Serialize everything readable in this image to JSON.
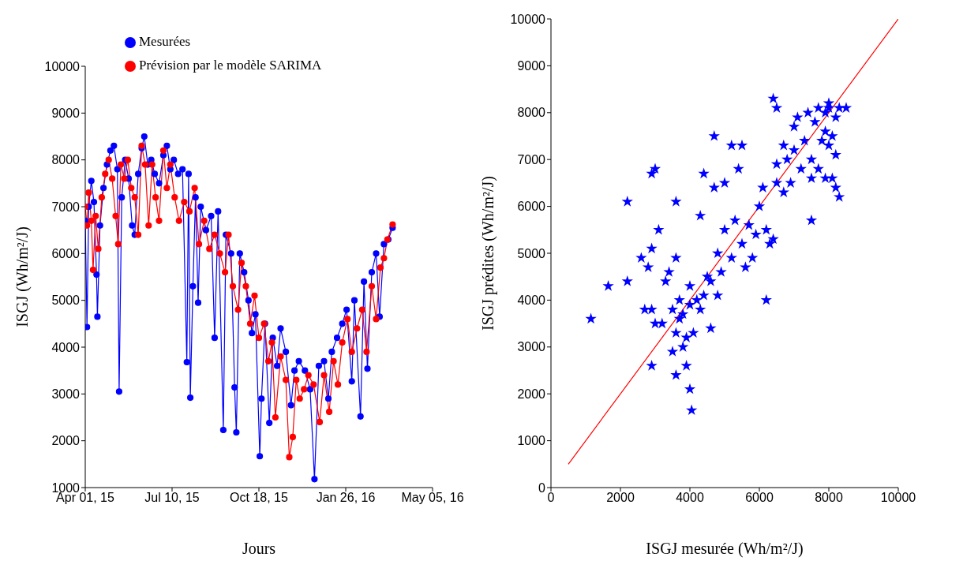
{
  "chart_data": [
    {
      "type": "line",
      "xlabel": "Jours",
      "ylabel": "ISGJ (Wh/m²/J)",
      "xlim": [
        "2015-04-01",
        "2016-05-05"
      ],
      "xticks": [
        {
          "value": "2015-04-01",
          "label": "Apr 01, 15"
        },
        {
          "value": "2015-07-10",
          "label": "Jul 10, 15"
        },
        {
          "value": "2015-10-18",
          "label": "Oct 18, 15"
        },
        {
          "value": "2016-01-26",
          "label": "Jan 26, 16"
        },
        {
          "value": "2016-05-05",
          "label": "May 05, 16"
        }
      ],
      "ylim": [
        1000,
        10000
      ],
      "yticks": [
        1000,
        2000,
        3000,
        4000,
        5000,
        6000,
        7000,
        8000,
        9000,
        10000
      ],
      "legend": "top",
      "marker": "circle",
      "line_style": "solid",
      "series": [
        {
          "name": "Mesurées",
          "color": "#0000ff",
          "x": [
            "2015-04-01",
            "2015-04-03",
            "2015-04-05",
            "2015-04-08",
            "2015-04-11",
            "2015-04-14",
            "2015-04-15",
            "2015-04-18",
            "2015-04-22",
            "2015-04-26",
            "2015-04-30",
            "2015-05-04",
            "2015-05-08",
            "2015-05-10",
            "2015-05-13",
            "2015-05-17",
            "2015-05-21",
            "2015-05-25",
            "2015-05-28",
            "2015-06-01",
            "2015-06-05",
            "2015-06-08",
            "2015-06-12",
            "2015-06-16",
            "2015-06-20",
            "2015-06-25",
            "2015-06-30",
            "2015-07-04",
            "2015-07-08",
            "2015-07-12",
            "2015-07-17",
            "2015-07-22",
            "2015-07-27",
            "2015-07-29",
            "2015-07-31",
            "2015-08-03",
            "2015-08-06",
            "2015-08-09",
            "2015-08-12",
            "2015-08-18",
            "2015-08-24",
            "2015-08-28",
            "2015-09-01",
            "2015-09-07",
            "2015-09-10",
            "2015-09-16",
            "2015-09-20",
            "2015-09-22",
            "2015-09-26",
            "2015-10-01",
            "2015-10-06",
            "2015-10-10",
            "2015-10-14",
            "2015-10-19",
            "2015-10-21",
            "2015-10-25",
            "2015-10-30",
            "2015-11-03",
            "2015-11-08",
            "2015-11-12",
            "2015-11-18",
            "2015-11-24",
            "2015-11-28",
            "2015-12-03",
            "2015-12-10",
            "2015-12-16",
            "2015-12-21",
            "2015-12-26",
            "2016-01-01",
            "2016-01-06",
            "2016-01-10",
            "2016-01-16",
            "2016-01-22",
            "2016-01-27",
            "2016-02-02",
            "2016-02-05",
            "2016-02-12",
            "2016-02-16",
            "2016-02-20",
            "2016-02-25",
            "2016-03-01",
            "2016-03-05",
            "2016-03-10",
            "2016-03-15",
            "2016-03-20"
          ],
          "values": [
            6700,
            4430,
            7000,
            7550,
            7100,
            5550,
            4650,
            6600,
            7400,
            7900,
            8200,
            8300,
            7800,
            3050,
            7200,
            8000,
            7600,
            6600,
            6400,
            7700,
            8250,
            8500,
            7900,
            8000,
            7700,
            7500,
            8100,
            8300,
            7800,
            8000,
            7700,
            7800,
            3680,
            7700,
            2920,
            5300,
            7200,
            4950,
            7000,
            6500,
            6800,
            4200,
            6900,
            2230,
            6400,
            6000,
            3140,
            2180,
            6000,
            5600,
            5000,
            4300,
            4700,
            1670,
            2900,
            4500,
            2380,
            4200,
            3600,
            4400,
            3900,
            2760,
            3500,
            3700,
            3500,
            3100,
            1180,
            3600,
            3700,
            2900,
            3900,
            4200,
            4500,
            4800,
            3270,
            5000,
            2520,
            5400,
            3540,
            5600,
            6000,
            4650,
            6200,
            6300,
            6550
          ]
        },
        {
          "name": "Prévision par le modèle SARIMA",
          "color": "#ff0000",
          "x": [
            "2015-04-01",
            "2015-04-03",
            "2015-04-05",
            "2015-04-08",
            "2015-04-10",
            "2015-04-13",
            "2015-04-16",
            "2015-04-20",
            "2015-04-24",
            "2015-04-28",
            "2015-05-02",
            "2015-05-06",
            "2015-05-09",
            "2015-05-12",
            "2015-05-16",
            "2015-05-20",
            "2015-05-24",
            "2015-05-28",
            "2015-06-01",
            "2015-06-05",
            "2015-06-09",
            "2015-06-13",
            "2015-06-17",
            "2015-06-21",
            "2015-06-25",
            "2015-06-30",
            "2015-07-04",
            "2015-07-08",
            "2015-07-13",
            "2015-07-18",
            "2015-07-24",
            "2015-07-30",
            "2015-08-05",
            "2015-08-10",
            "2015-08-16",
            "2015-08-22",
            "2015-08-28",
            "2015-09-03",
            "2015-09-09",
            "2015-09-13",
            "2015-09-18",
            "2015-09-24",
            "2015-09-28",
            "2015-10-03",
            "2015-10-08",
            "2015-10-13",
            "2015-10-18",
            "2015-10-24",
            "2015-10-29",
            "2015-11-02",
            "2015-11-06",
            "2015-11-12",
            "2015-11-18",
            "2015-11-22",
            "2015-11-26",
            "2015-11-30",
            "2015-12-04",
            "2015-12-09",
            "2015-12-14",
            "2015-12-20",
            "2015-12-27",
            "2016-01-01",
            "2016-01-07",
            "2016-01-12",
            "2016-01-17",
            "2016-01-22",
            "2016-01-28",
            "2016-02-02",
            "2016-02-08",
            "2016-02-14",
            "2016-02-19",
            "2016-02-25",
            "2016-03-01",
            "2016-03-06",
            "2016-03-10",
            "2016-03-14",
            "2016-03-20"
          ],
          "values": [
            7000,
            6600,
            7300,
            6700,
            5650,
            6800,
            6100,
            7200,
            7700,
            8000,
            7600,
            6800,
            6200,
            7900,
            7600,
            8000,
            7400,
            7200,
            6400,
            8300,
            7900,
            6600,
            7900,
            7200,
            6700,
            8200,
            7400,
            7900,
            7200,
            6700,
            7100,
            6900,
            7400,
            6200,
            6700,
            6100,
            6400,
            6000,
            5600,
            6400,
            5300,
            4800,
            5800,
            5300,
            4500,
            5100,
            4200,
            4500,
            3700,
            4100,
            2500,
            3800,
            3300,
            1650,
            2080,
            3300,
            2900,
            3100,
            3400,
            3200,
            2400,
            3400,
            2620,
            3700,
            3200,
            4100,
            4600,
            3900,
            4400,
            4800,
            3900,
            5300,
            4600,
            5700,
            5900,
            6300,
            6620
          ]
        }
      ]
    },
    {
      "type": "scatter",
      "xlabel": "ISGJ mesurée (Wh/m²/J)",
      "ylabel": "ISGJ prédites (Wh/m²/J)",
      "xlim": [
        0,
        10000
      ],
      "xticks": [
        0,
        2000,
        4000,
        6000,
        8000,
        10000
      ],
      "ylim": [
        0,
        10000
      ],
      "yticks": [
        0,
        1000,
        2000,
        3000,
        4000,
        5000,
        6000,
        7000,
        8000,
        9000,
        10000
      ],
      "legend": false,
      "series": [
        {
          "color": "#0000ff",
          "marker": "star",
          "x": [
            1150,
            1650,
            2200,
            2200,
            2900,
            3000,
            2900,
            2800,
            3100,
            2600,
            2700,
            2900,
            3000,
            2900,
            3200,
            3400,
            3600,
            3600,
            3500,
            3600,
            3500,
            3600,
            3800,
            3900,
            4000,
            4050,
            3800,
            3700,
            4000,
            4200,
            4000,
            4100,
            4300,
            4400,
            4500,
            4600,
            4300,
            4400,
            4700,
            4700,
            4600,
            4800,
            4900,
            5000,
            5000,
            5200,
            5300,
            5400,
            5200,
            5500,
            5600,
            5800,
            5700,
            5900,
            5500,
            6000,
            6100,
            6200,
            6300,
            6200,
            6400,
            6500,
            6500,
            6400,
            6500,
            6700,
            6700,
            6800,
            6900,
            7000,
            7000,
            7100,
            7200,
            7300,
            7500,
            7400,
            7600,
            7700,
            7500,
            7700,
            7800,
            7900,
            7900,
            8000,
            8000,
            8100,
            8100,
            8200,
            8200,
            8300,
            8200,
            8300,
            8500,
            7900,
            7500,
            8000,
            3300,
            3900,
            3700,
            4800
          ],
          "values": [
            3600,
            4300,
            4400,
            6100,
            6700,
            6800,
            5100,
            4700,
            5500,
            4900,
            3800,
            3800,
            3500,
            2600,
            3500,
            4600,
            4900,
            6100,
            3800,
            3300,
            2900,
            2400,
            3000,
            2600,
            2100,
            1650,
            3700,
            3600,
            3900,
            4000,
            4300,
            3300,
            3800,
            4100,
            4500,
            3400,
            5800,
            6700,
            6400,
            7500,
            4400,
            5000,
            4600,
            5500,
            6500,
            4900,
            5700,
            6800,
            7300,
            5200,
            4700,
            4900,
            5600,
            5400,
            7300,
            6000,
            6400,
            5500,
            5200,
            4000,
            5300,
            6500,
            6900,
            8300,
            8100,
            7300,
            6300,
            7000,
            6500,
            7200,
            7700,
            7900,
            6800,
            7400,
            5700,
            8000,
            7800,
            8100,
            7000,
            6800,
            7400,
            8000,
            7600,
            8100,
            7300,
            7500,
            6600,
            7900,
            7100,
            8100,
            6400,
            6200,
            8100,
            6600,
            6600,
            8200,
            4400,
            3200,
            4000,
            4100
          ]
        },
        {
          "type": "line",
          "color": "#ff0000",
          "marker": "none",
          "x": [
            500,
            10000
          ],
          "values": [
            500,
            10000
          ]
        }
      ]
    }
  ]
}
